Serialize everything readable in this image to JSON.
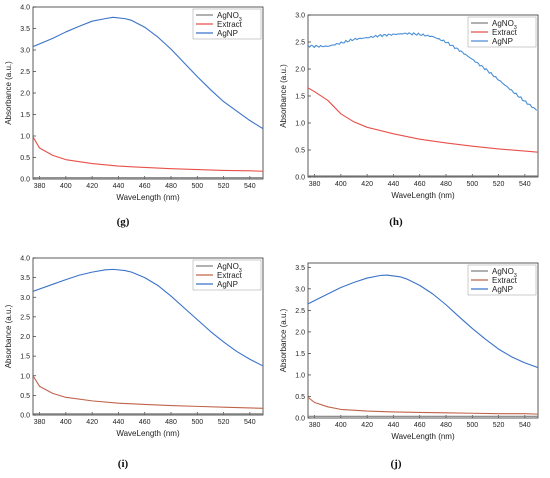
{
  "chart_data": [
    {
      "type": "line",
      "label": "",
      "xlabel": "WaveLength (nm)",
      "ylabel": "Absorbance (a.u.)",
      "xlim": [
        375,
        550
      ],
      "ylim": [
        0,
        4.0
      ],
      "xticks": [
        380,
        400,
        420,
        440,
        460,
        480,
        500,
        520,
        540
      ],
      "yticks": [
        0.0,
        0.5,
        1.0,
        1.5,
        2.0,
        2.5,
        3.0,
        3.5,
        4.0
      ],
      "ytick_labels": [
        "0.0",
        "0.5",
        "1.0",
        "1.5",
        "2.0",
        "2.5",
        "3.0",
        "3.5",
        "4.0"
      ],
      "grid": false,
      "legend_position": "top-right",
      "series": [
        {
          "name": "AgNO",
          "subscript": "3",
          "color": "#808080",
          "noisy": false,
          "x": [
            375,
            550
          ],
          "y": [
            0.03,
            0.03
          ]
        },
        {
          "name": "Extract",
          "color": "#e8504a",
          "noisy": false,
          "x": [
            375,
            380,
            390,
            400,
            420,
            440,
            460,
            480,
            500,
            520,
            540,
            550
          ],
          "y": [
            0.98,
            0.72,
            0.55,
            0.45,
            0.36,
            0.3,
            0.27,
            0.24,
            0.22,
            0.2,
            0.19,
            0.18
          ]
        },
        {
          "name": "AgNP",
          "color": "#3a73c9",
          "noisy": false,
          "x": [
            375,
            390,
            400,
            410,
            420,
            430,
            436,
            445,
            450,
            460,
            470,
            480,
            490,
            500,
            510,
            520,
            530,
            540,
            550
          ],
          "y": [
            3.08,
            3.27,
            3.42,
            3.55,
            3.67,
            3.73,
            3.76,
            3.73,
            3.69,
            3.53,
            3.3,
            3.02,
            2.7,
            2.38,
            2.08,
            1.8,
            1.58,
            1.36,
            1.17
          ]
        }
      ]
    },
    {
      "type": "line",
      "label": "(h)",
      "xlabel": "WaveLength (nm)",
      "ylabel": "Absorbance (a.u.)",
      "xlim": [
        375,
        550
      ],
      "ylim": [
        0,
        3.0
      ],
      "xticks": [
        380,
        400,
        420,
        440,
        460,
        480,
        500,
        520,
        540
      ],
      "yticks": [
        0.0,
        0.5,
        1.0,
        1.5,
        2.0,
        2.5,
        3.0
      ],
      "ytick_labels": [
        "0.0",
        "0.5",
        "1.0",
        "1.5",
        "2.0",
        "2.5",
        "3.0"
      ],
      "grid": false,
      "legend_position": "top-right",
      "series": [
        {
          "name": "AgNO",
          "subscript": "3",
          "color": "#808080",
          "noisy": false,
          "x": [
            375,
            550
          ],
          "y": [
            0.02,
            0.02
          ]
        },
        {
          "name": "Extract",
          "color": "#e8504a",
          "noisy": false,
          "x": [
            375,
            380,
            390,
            400,
            410,
            420,
            440,
            460,
            480,
            500,
            520,
            540,
            550
          ],
          "y": [
            1.65,
            1.58,
            1.42,
            1.17,
            1.02,
            0.92,
            0.8,
            0.7,
            0.63,
            0.57,
            0.52,
            0.48,
            0.46
          ]
        },
        {
          "name": "AgNP",
          "color": "#4a8fd6",
          "noisy": true,
          "x": [
            375,
            380,
            390,
            400,
            410,
            420,
            430,
            440,
            450,
            460,
            470,
            480,
            490,
            500,
            510,
            520,
            530,
            540,
            550
          ],
          "y": [
            2.43,
            2.42,
            2.42,
            2.48,
            2.55,
            2.58,
            2.62,
            2.64,
            2.66,
            2.64,
            2.6,
            2.5,
            2.35,
            2.18,
            2.0,
            1.8,
            1.6,
            1.4,
            1.22
          ]
        }
      ]
    },
    {
      "type": "line",
      "label": "(i)",
      "xlabel": "WaveLength (nm)",
      "ylabel": "Absorbance (a.u.)",
      "xlim": [
        375,
        550
      ],
      "ylim": [
        0,
        4.0
      ],
      "xticks": [
        380,
        400,
        420,
        440,
        460,
        480,
        500,
        520,
        540
      ],
      "yticks": [
        0.0,
        0.5,
        1.0,
        1.5,
        2.0,
        2.5,
        3.0,
        3.5,
        4.0
      ],
      "ytick_labels": [
        "0.0",
        "0.5",
        "1.0",
        "1.5",
        "2.0",
        "2.5",
        "3.0",
        "3.5",
        "4.0"
      ],
      "grid": false,
      "legend_position": "top-right",
      "series": [
        {
          "name": "AgNO",
          "subscript": "3",
          "color": "#808080",
          "noisy": false,
          "x": [
            375,
            550
          ],
          "y": [
            0.03,
            0.03
          ]
        },
        {
          "name": "Extract",
          "color": "#c0634a",
          "noisy": false,
          "x": [
            375,
            380,
            390,
            400,
            420,
            440,
            460,
            480,
            500,
            520,
            540,
            550
          ],
          "y": [
            1.0,
            0.73,
            0.55,
            0.45,
            0.36,
            0.3,
            0.27,
            0.24,
            0.22,
            0.2,
            0.18,
            0.17
          ]
        },
        {
          "name": "AgNP",
          "color": "#3a73c9",
          "noisy": false,
          "x": [
            375,
            390,
            400,
            410,
            420,
            430,
            436,
            445,
            450,
            460,
            470,
            480,
            490,
            500,
            510,
            520,
            530,
            540,
            550
          ],
          "y": [
            3.15,
            3.33,
            3.45,
            3.56,
            3.64,
            3.7,
            3.71,
            3.68,
            3.64,
            3.5,
            3.3,
            3.03,
            2.73,
            2.43,
            2.13,
            1.86,
            1.62,
            1.42,
            1.25
          ]
        }
      ]
    },
    {
      "type": "line",
      "label": "(j)",
      "xlabel": "WaveLength (nm)",
      "ylabel": "Absorbance (a.u.)",
      "xlim": [
        375,
        550
      ],
      "ylim": [
        0,
        3.6
      ],
      "xticks": [
        380,
        400,
        420,
        440,
        460,
        480,
        500,
        520,
        540
      ],
      "yticks": [
        0.0,
        0.5,
        1.0,
        1.5,
        2.0,
        2.5,
        3.0,
        3.5
      ],
      "ytick_labels": [
        "0.0",
        "0.5",
        "1.0",
        "1.5",
        "2.0",
        "2.5",
        "3.0",
        "3.5"
      ],
      "grid": false,
      "legend_position": "top-right",
      "series": [
        {
          "name": "AgNO",
          "subscript": "3",
          "color": "#808080",
          "noisy": false,
          "x": [
            375,
            550
          ],
          "y": [
            0.04,
            0.04
          ]
        },
        {
          "name": "Extract",
          "color": "#c0634a",
          "noisy": false,
          "x": [
            375,
            380,
            390,
            400,
            420,
            440,
            460,
            480,
            500,
            520,
            540,
            550
          ],
          "y": [
            0.48,
            0.36,
            0.26,
            0.2,
            0.16,
            0.14,
            0.13,
            0.12,
            0.11,
            0.1,
            0.1,
            0.09
          ]
        },
        {
          "name": "AgNP",
          "color": "#3a73c9",
          "noisy": false,
          "x": [
            375,
            390,
            400,
            410,
            420,
            430,
            435,
            445,
            450,
            460,
            470,
            480,
            490,
            500,
            510,
            520,
            530,
            540,
            550
          ],
          "y": [
            2.65,
            2.88,
            3.03,
            3.15,
            3.25,
            3.31,
            3.32,
            3.28,
            3.23,
            3.08,
            2.88,
            2.63,
            2.35,
            2.08,
            1.83,
            1.6,
            1.42,
            1.28,
            1.17
          ]
        }
      ]
    }
  ],
  "caption_labels": [
    "(g)",
    "(h)",
    "(i)",
    "(j)"
  ]
}
